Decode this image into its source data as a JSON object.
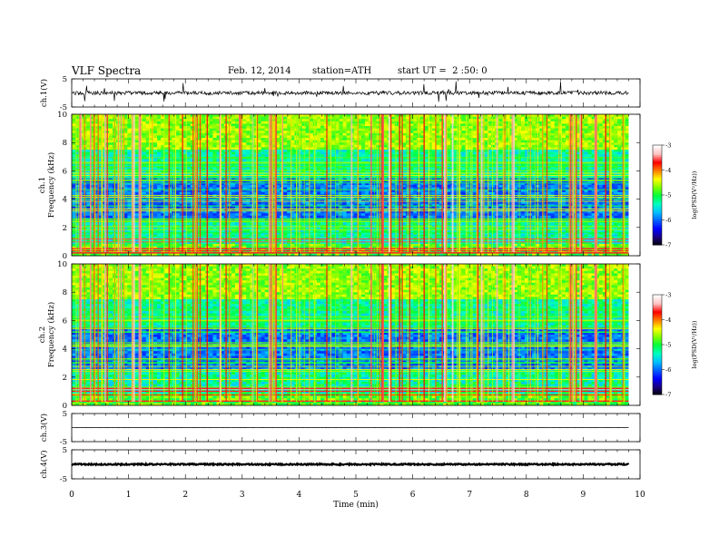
{
  "header": {
    "title": "VLF Spectra",
    "date": "Feb. 12, 2014",
    "station": "station=ATH",
    "start": "start UT =  2 :50: 0"
  },
  "chart_data": [
    {
      "type": "line",
      "panel": "ch1-waveform",
      "ylabel": "ch.1(V)",
      "yticks": [
        "5",
        "-5"
      ],
      "ylim": [
        -5,
        5
      ],
      "x_end": 9.8,
      "baseline": 0
    },
    {
      "type": "heatmap",
      "panel": "ch1-spectrogram",
      "ylabel": [
        "ch.1",
        "Frequency (kHz)"
      ],
      "yticks": [
        "10",
        "8",
        "6",
        "4",
        "2",
        "0"
      ],
      "ylim": [
        0,
        10
      ],
      "xlim": [
        0,
        9.8
      ],
      "colorbar": {
        "label": "log(PSD(V²/Hz))",
        "ticks": [
          "-3",
          "-4",
          "-5",
          "-6",
          "-7"
        ],
        "range": [
          -7,
          -3
        ]
      }
    },
    {
      "type": "heatmap",
      "panel": "ch2-spectrogram",
      "ylabel": [
        "ch.2",
        "Frequency (kHz)"
      ],
      "yticks": [
        "10",
        "8",
        "6",
        "4",
        "2",
        "0"
      ],
      "ylim": [
        0,
        10
      ],
      "xlim": [
        0,
        9.8
      ],
      "colorbar": {
        "label": "log(PSD(V²/Hz))",
        "ticks": [
          "-3",
          "-4",
          "-5",
          "-6",
          "-7"
        ],
        "range": [
          -7,
          -3
        ]
      }
    },
    {
      "type": "line",
      "panel": "ch3-waveform",
      "ylabel": "ch.3(V)",
      "yticks": [
        "5",
        "-5"
      ],
      "ylim": [
        -5,
        5
      ],
      "x_end": 9.8,
      "baseline": 0
    },
    {
      "type": "line",
      "panel": "ch4-waveform",
      "ylabel": "ch.4(V)",
      "yticks": [
        "5",
        "-5"
      ],
      "ylim": [
        -5,
        5
      ],
      "x_end": 9.8,
      "baseline": 0
    }
  ],
  "xaxis": {
    "label": "Time (min)",
    "ticks": [
      "0",
      "1",
      "2",
      "3",
      "4",
      "5",
      "6",
      "7",
      "8",
      "9",
      "10"
    ],
    "xlim": [
      0,
      10
    ]
  },
  "colors": {
    "colormap": [
      "#000000",
      "#1a0080",
      "#0000ff",
      "#0060ff",
      "#00c0ff",
      "#00ffc0",
      "#00ff40",
      "#80ff00",
      "#ffff00",
      "#ff8000",
      "#ff0000",
      "#ffc0c0",
      "#ffffff"
    ]
  }
}
